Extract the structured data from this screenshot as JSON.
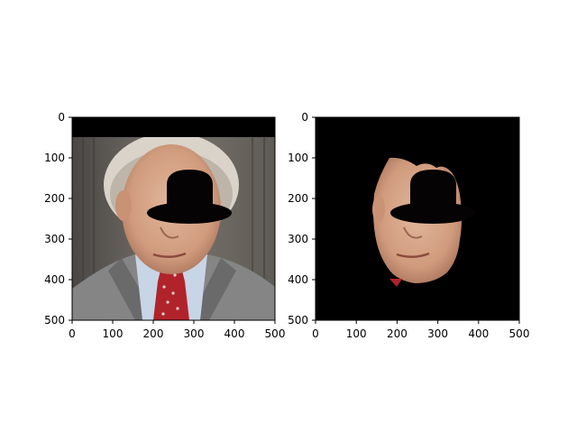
{
  "figure": {
    "background": "#ffffff",
    "axes_color": "#000000"
  },
  "chart_data": [
    {
      "type": "image",
      "content": "photo of a man in a grey suit and red tie, with an opaque black hat-shaped mask covering the upper face; black band at the top of the frame",
      "x_ticks": [
        0,
        100,
        200,
        300,
        400,
        500
      ],
      "y_ticks": [
        0,
        100,
        200,
        300,
        400,
        500
      ],
      "xlim": [
        0,
        500
      ],
      "ylim": [
        500,
        0
      ],
      "y_axis_inverted": true,
      "grid": false,
      "title": "",
      "xlabel": "",
      "ylabel": "",
      "regions": {
        "top_black_band_y": [
          0,
          50
        ],
        "hat_crown": {
          "cx": 290,
          "cy": 185,
          "rx": 55,
          "ry": 50
        },
        "hat_brim": {
          "cx": 290,
          "cy": 237,
          "rx": 105,
          "ry": 27
        }
      }
    },
    {
      "type": "image",
      "content": "segmented face region on a black background; upper-face area blacked out by the same hat-shaped mask",
      "x_ticks": [
        0,
        100,
        200,
        300,
        400,
        500
      ],
      "y_ticks": [
        0,
        100,
        200,
        300,
        400,
        500
      ],
      "xlim": [
        0,
        500
      ],
      "ylim": [
        500,
        0
      ],
      "y_axis_inverted": true,
      "grid": false,
      "title": "",
      "xlabel": "",
      "ylabel": "",
      "background_color": "#000000"
    }
  ],
  "colors": {
    "skin": "#d9a98c",
    "skin_shadow": "#b57d62",
    "suit": "#8a8a8a",
    "suit_dark": "#5f5f5f",
    "shirt": "#c9d6e8",
    "tie": "#b3232c",
    "hair": "#d8d2c8",
    "bg_wall": "#6f6a64",
    "mask": "#050303"
  }
}
